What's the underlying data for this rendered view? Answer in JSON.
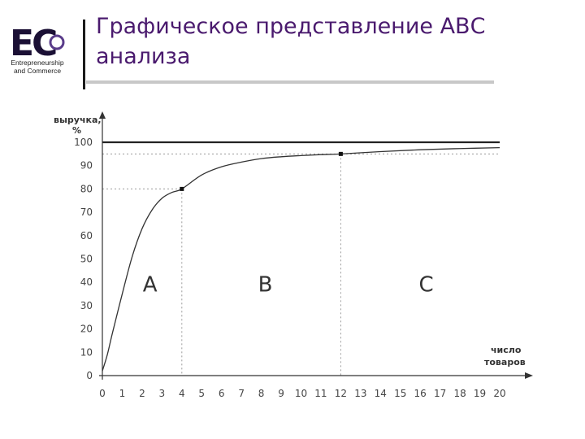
{
  "header": {
    "title": "Графическое представление АВС анализа",
    "logo": {
      "letters": "EC",
      "line1": "Entrepreneurship",
      "line2": "and Commerce",
      "colors": {
        "letters": "#1b1035",
        "ring": "#5a3c8a"
      }
    },
    "colors": {
      "title": "#4a1a6e",
      "divider": "#1a1a1a",
      "underline": "#c8c8c8"
    }
  },
  "chart_data": {
    "type": "line",
    "ylabel_line1": "выручка,",
    "ylabel_line2": "%",
    "xlabel_line1": "число",
    "xlabel_line2": "товаров",
    "xlim": [
      0,
      20
    ],
    "ylim": [
      0,
      100
    ],
    "x_ticks": [
      "0",
      "1",
      "2",
      "3",
      "4",
      "5",
      "6",
      "7",
      "8",
      "9",
      "10",
      "11",
      "12",
      "13",
      "14",
      "15",
      "16",
      "17",
      "18",
      "19",
      "20"
    ],
    "y_ticks": [
      "0",
      "10",
      "20",
      "30",
      "40",
      "50",
      "60",
      "70",
      "80",
      "90",
      "100"
    ],
    "series": [
      {
        "x": [
          0,
          0.25,
          0.5,
          1,
          1.5,
          2,
          2.5,
          3,
          3.5,
          4,
          5,
          6,
          7,
          8,
          9,
          10,
          11,
          12,
          14,
          16,
          18,
          20
        ],
        "y": [
          2,
          9,
          18,
          35,
          51,
          63,
          71,
          76,
          78.5,
          80,
          86,
          89.5,
          91.5,
          93,
          93.8,
          94.3,
          94.7,
          95,
          96,
          96.8,
          97.3,
          97.7
        ]
      }
    ],
    "reference_line_y": 100,
    "points": [
      {
        "x": 4,
        "y": 80
      },
      {
        "x": 12,
        "y": 95
      }
    ],
    "regions": [
      {
        "label": "A",
        "x": 2.4,
        "y": 36
      },
      {
        "label": "B",
        "x": 8.2,
        "y": 36
      },
      {
        "label": "C",
        "x": 16.3,
        "y": 36
      }
    ],
    "grid": false,
    "colors": {
      "curve": "#333333",
      "reference": "#222222",
      "guide": "#999999"
    }
  }
}
